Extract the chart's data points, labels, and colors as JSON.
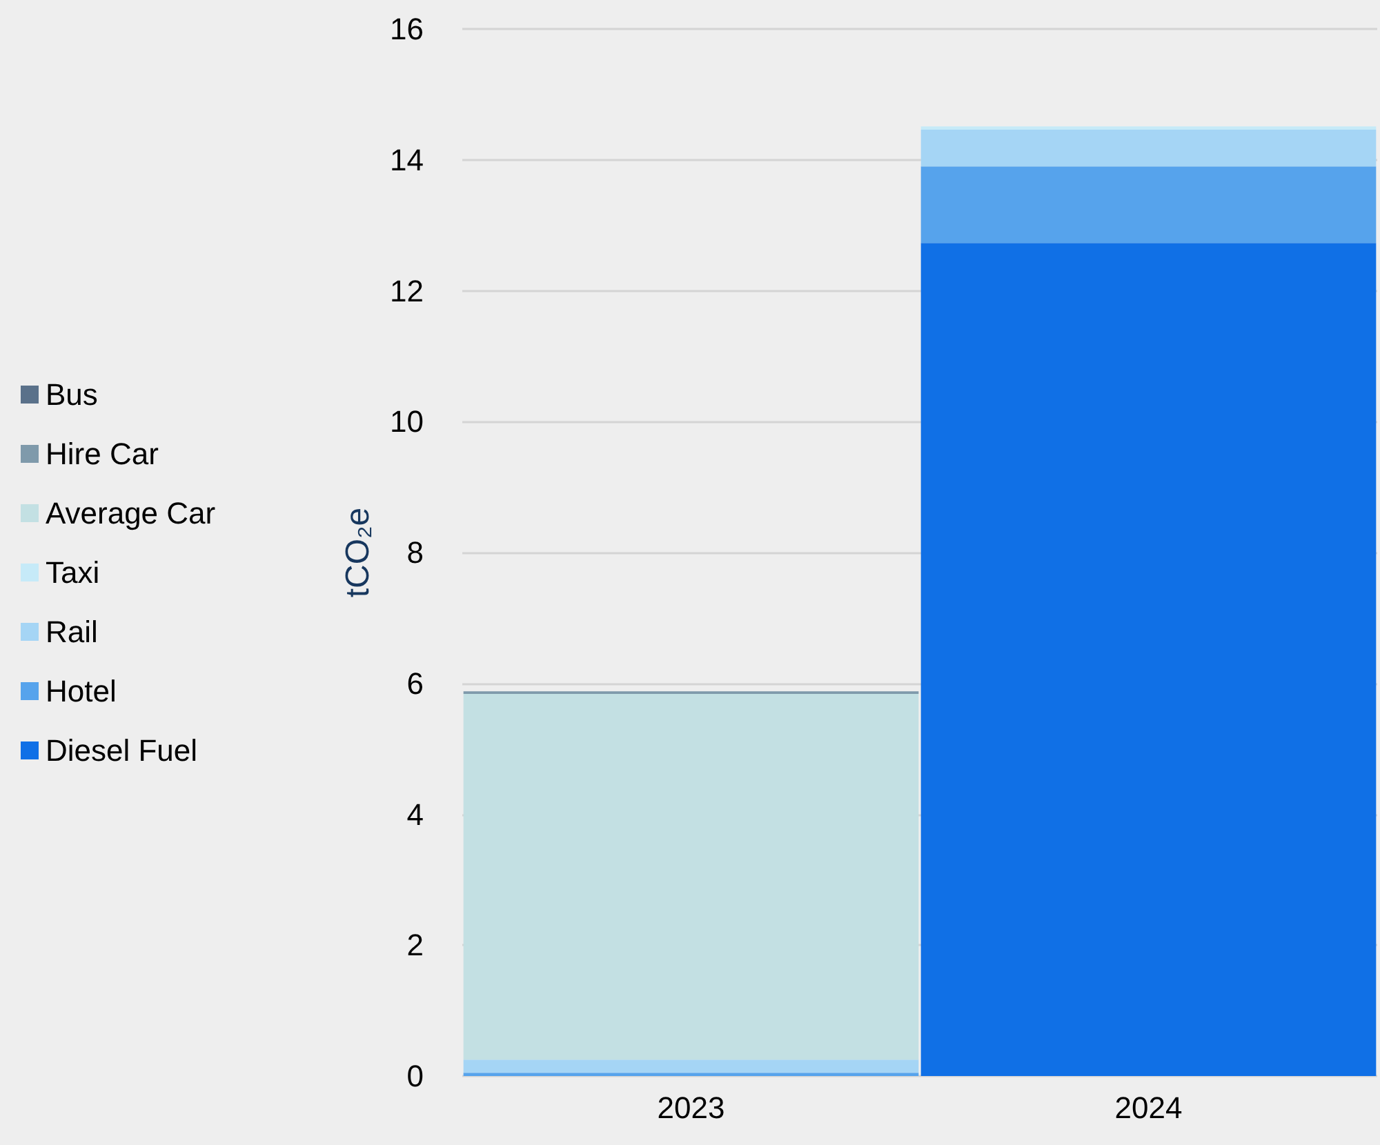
{
  "chart_data": {
    "type": "bar",
    "stacked": true,
    "ylabel": "tCO₂e",
    "categories": [
      "2023",
      "2024"
    ],
    "series": [
      {
        "name": "Diesel Fuel",
        "color": "#1070e6",
        "values": [
          0,
          12.73
        ]
      },
      {
        "name": "Hotel",
        "color": "#56a3ec",
        "values": [
          0.05,
          1.17
        ]
      },
      {
        "name": "Rail",
        "color": "#a5d5f5",
        "values": [
          0.2,
          0.56
        ]
      },
      {
        "name": "Taxi",
        "color": "#c6eaf8",
        "values": [
          0,
          0.05
        ]
      },
      {
        "name": "Average Car",
        "color": "#c3e0e3",
        "values": [
          5.59,
          0
        ]
      },
      {
        "name": "Hire Car",
        "color": "#7f9aab",
        "values": [
          0.04,
          0
        ]
      },
      {
        "name": "Bus",
        "color": "#5a718a",
        "values": [
          0,
          0
        ]
      }
    ],
    "ylim": [
      0,
      16
    ],
    "yticks": [
      0,
      2,
      4,
      6,
      8,
      10,
      12,
      14,
      16
    ],
    "grid": "y",
    "legend": "left"
  }
}
